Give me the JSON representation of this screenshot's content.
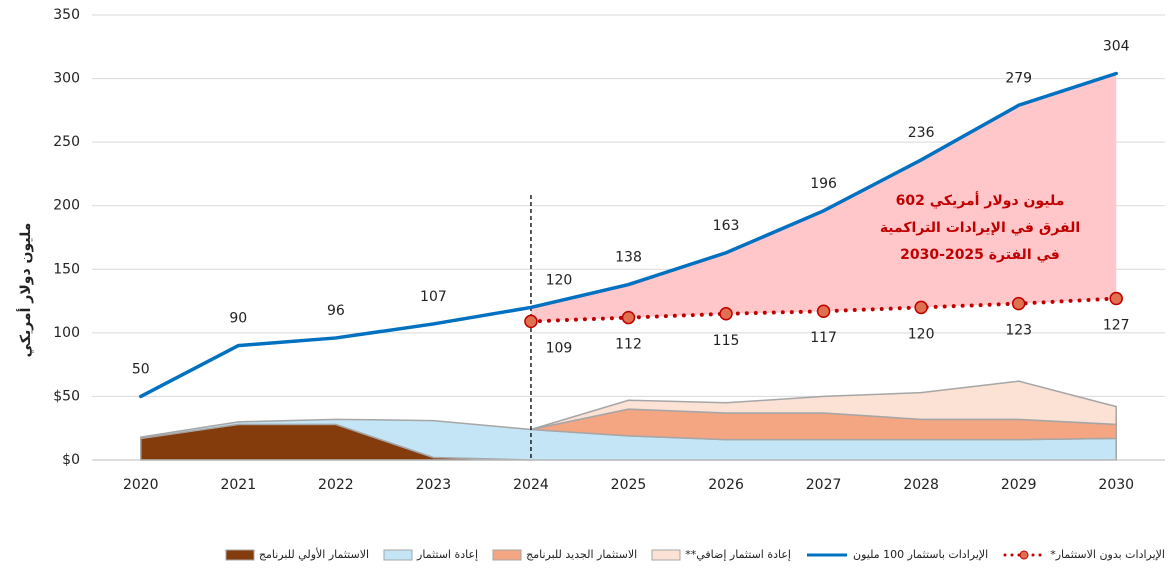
{
  "chart_data": {
    "type": "line-area",
    "y_label": "مليون دولار أمريكي",
    "categories": [
      "2020",
      "2021",
      "2022",
      "2023",
      "2024",
      "2025",
      "2026",
      "2027",
      "2028",
      "2029",
      "2030"
    ],
    "ylim": [
      0,
      350
    ],
    "yticks": [
      {
        "value": 0,
        "label": "$0"
      },
      {
        "value": 50,
        "label": "$50"
      },
      100,
      150,
      200,
      250,
      300,
      350
    ],
    "grid": true,
    "divider": "2024",
    "annotation": [
      "602 مليون دولار أمريكي",
      "الفرق في الإيرادات التراكمية",
      "في الفترة 2025-2030"
    ],
    "series": [
      {
        "name": "الإيرادات بدون الاستثمار*",
        "kind": "line",
        "style": "dotted",
        "color": "#c00000",
        "marker_fill": "#e0704f",
        "values": [
          null,
          null,
          null,
          null,
          109,
          112,
          115,
          117,
          120,
          123,
          127
        ]
      },
      {
        "name": "الإيرادات باستثمار 100 مليون",
        "kind": "line",
        "style": "solid",
        "color": "#0070c0",
        "values": [
          50,
          90,
          96,
          107,
          120,
          138,
          163,
          196,
          236,
          279,
          304
        ]
      },
      {
        "name": "إعادة استثمار إضافي**",
        "kind": "area",
        "color": "#fbe2d5",
        "values": [
          null,
          null,
          null,
          null,
          0,
          7,
          8,
          13,
          21,
          30,
          14
        ]
      },
      {
        "name": "الاستثمار الجديد للبرنامج",
        "kind": "area",
        "color": "#f4a582",
        "values": [
          null,
          null,
          null,
          null,
          0,
          21,
          21,
          21,
          16,
          16,
          11
        ]
      },
      {
        "name": "إعادة استثمار",
        "kind": "area",
        "color": "#c3e5f5",
        "values": [
          1,
          2,
          4,
          29,
          24,
          19,
          16,
          16,
          16,
          16,
          17
        ]
      },
      {
        "name": "الاستثمار الأولي للبرنامج",
        "kind": "area",
        "color": "#843c0c",
        "values": [
          17,
          28,
          28,
          2,
          0,
          null,
          null,
          null,
          null,
          null,
          null
        ]
      }
    ]
  }
}
